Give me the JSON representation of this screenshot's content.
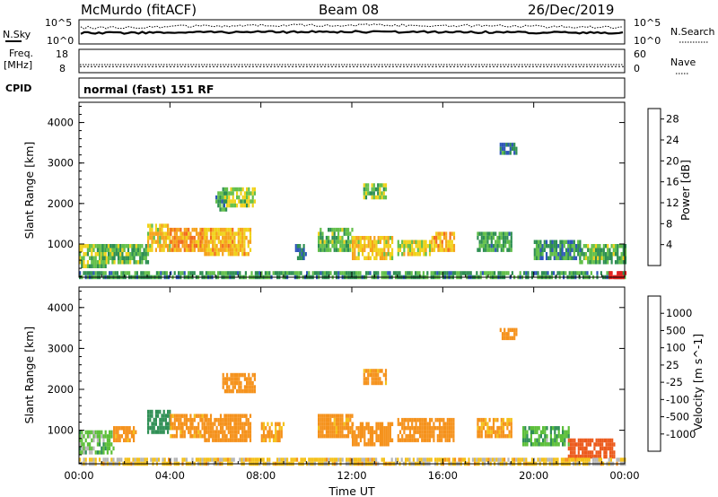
{
  "header": {
    "station": "McMurdo (fitACF)",
    "beam": "Beam 08",
    "date": "26/Dec/2019"
  },
  "noise_panel": {
    "left_label": "N.Sky",
    "right_label": "N.Search",
    "left_ticks": [
      "10^5",
      "10^0"
    ],
    "right_ticks": [
      "10^5",
      "10^0"
    ]
  },
  "freq_panel": {
    "left_label_line1": "Freq.",
    "left_label_line2": "[MHz]",
    "right_label": "Nave",
    "left_ticks": [
      "18",
      "8"
    ],
    "right_ticks": [
      "60",
      "0"
    ],
    "freq_mhz": 10.4,
    "nave": 20
  },
  "cpid_panel": {
    "label": "CPID",
    "mode": "normal (fast) 151 RF"
  },
  "chart_data": [
    {
      "type": "heatmap",
      "parameter": "Power",
      "ylabel": "Slant Range [km]",
      "xlabel": "Time UT",
      "ylim": [
        180,
        4500
      ],
      "xlim": [
        "00:00",
        "24:00"
      ],
      "y_ticks": [
        1000,
        2000,
        3000,
        4000
      ],
      "x_ticks": [
        "00:00",
        "04:00",
        "08:00",
        "12:00",
        "16:00",
        "20:00",
        "00:00"
      ],
      "colorbar": {
        "label": "Power [dB]",
        "range": [
          0,
          30
        ],
        "ticks": [
          4,
          8,
          12,
          16,
          20,
          24,
          28
        ],
        "colors": [
          "#0a1ef5",
          "#2d56b8",
          "#2e8f52",
          "#62bf4a",
          "#f0d21a",
          "#f6a21c",
          "#f26b1d",
          "#e81d1d"
        ]
      },
      "echo_regions": [
        {
          "t": [
            0.0,
            1.2
          ],
          "r": [
            500,
            1000
          ],
          "v": 14
        },
        {
          "t": [
            1.0,
            3.0
          ],
          "r": [
            600,
            1000
          ],
          "v": 12
        },
        {
          "t": [
            3.0,
            4.0
          ],
          "r": [
            900,
            1500
          ],
          "v": 18
        },
        {
          "t": [
            4.0,
            5.5
          ],
          "r": [
            900,
            1400
          ],
          "v": 22
        },
        {
          "t": [
            5.5,
            7.5
          ],
          "r": [
            800,
            1400
          ],
          "v": 19
        },
        {
          "t": [
            6.3,
            7.7
          ],
          "r": [
            2000,
            2400
          ],
          "v": 15
        },
        {
          "t": [
            6.0,
            6.5
          ],
          "r": [
            1900,
            2300
          ],
          "v": 10
        },
        {
          "t": [
            9.5,
            10.0
          ],
          "r": [
            700,
            1000
          ],
          "v": 8
        },
        {
          "t": [
            10.5,
            12.0
          ],
          "r": [
            900,
            1400
          ],
          "v": 12
        },
        {
          "t": [
            12.0,
            13.8
          ],
          "r": [
            700,
            1200
          ],
          "v": 18
        },
        {
          "t": [
            12.5,
            13.5
          ],
          "r": [
            2200,
            2500
          ],
          "v": 14
        },
        {
          "t": [
            14.0,
            15.5
          ],
          "r": [
            800,
            1100
          ],
          "v": 16
        },
        {
          "t": [
            15.5,
            16.5
          ],
          "r": [
            900,
            1300
          ],
          "v": 20
        },
        {
          "t": [
            17.5,
            19.0
          ],
          "r": [
            900,
            1300
          ],
          "v": 11
        },
        {
          "t": [
            18.5,
            19.2
          ],
          "r": [
            3300,
            3500
          ],
          "v": 8
        },
        {
          "t": [
            20.0,
            22.0
          ],
          "r": [
            700,
            1100
          ],
          "v": 10
        },
        {
          "t": [
            22.0,
            24.0
          ],
          "r": [
            600,
            1000
          ],
          "v": 12
        },
        {
          "t": [
            0.0,
            24.0
          ],
          "r": [
            180,
            330
          ],
          "v": 10
        },
        {
          "t": [
            23.3,
            24.0
          ],
          "r": [
            180,
            330
          ],
          "v": 28
        }
      ]
    },
    {
      "type": "heatmap",
      "parameter": "Velocity",
      "ylabel": "Slant Range [km]",
      "xlabel": "Time UT",
      "ylim": [
        180,
        4500
      ],
      "xlim": [
        "00:00",
        "24:00"
      ],
      "y_ticks": [
        1000,
        2000,
        3000,
        4000
      ],
      "x_ticks": [
        "00:00",
        "04:00",
        "08:00",
        "12:00",
        "16:00",
        "20:00",
        "00:00"
      ],
      "colorbar": {
        "label": "Velocity [m s^-1]",
        "tick_labels": [
          "1000",
          "500",
          "100",
          "25",
          "-25",
          "-100",
          "-500",
          "-1000"
        ],
        "colors": [
          "#1f3fbf",
          "#2d78b5",
          "#2f8f55",
          "#5dbf3a",
          "#b7b7b7",
          "#f4c11a",
          "#f5921c",
          "#ec5a1c",
          "#e31a1a"
        ]
      },
      "echo_regions": [
        {
          "t": [
            0.0,
            1.5
          ],
          "r": [
            500,
            1000
          ],
          "v": 60
        },
        {
          "t": [
            1.5,
            2.5
          ],
          "r": [
            800,
            1100
          ],
          "v": -150
        },
        {
          "t": [
            3.0,
            4.0
          ],
          "r": [
            1000,
            1500
          ],
          "v": 300
        },
        {
          "t": [
            4.0,
            5.5
          ],
          "r": [
            900,
            1400
          ],
          "v": -150
        },
        {
          "t": [
            5.5,
            7.5
          ],
          "r": [
            800,
            1400
          ],
          "v": -200
        },
        {
          "t": [
            6.3,
            7.7
          ],
          "r": [
            2000,
            2400
          ],
          "v": -300
        },
        {
          "t": [
            8.0,
            9.0
          ],
          "r": [
            800,
            1200
          ],
          "v": -120
        },
        {
          "t": [
            10.5,
            12.0
          ],
          "r": [
            900,
            1400
          ],
          "v": -150
        },
        {
          "t": [
            12.0,
            13.8
          ],
          "r": [
            700,
            1200
          ],
          "v": -200
        },
        {
          "t": [
            12.5,
            13.5
          ],
          "r": [
            2200,
            2500
          ],
          "v": -150
        },
        {
          "t": [
            14.0,
            16.5
          ],
          "r": [
            800,
            1300
          ],
          "v": -200
        },
        {
          "t": [
            17.5,
            19.0
          ],
          "r": [
            900,
            1300
          ],
          "v": -120
        },
        {
          "t": [
            18.5,
            19.2
          ],
          "r": [
            3300,
            3500
          ],
          "v": -300
        },
        {
          "t": [
            19.5,
            21.5
          ],
          "r": [
            700,
            1100
          ],
          "v": 80
        },
        {
          "t": [
            21.5,
            23.5
          ],
          "r": [
            400,
            800
          ],
          "v": -700
        },
        {
          "t": [
            0.0,
            24.0
          ],
          "r": [
            180,
            330
          ],
          "v": -50
        }
      ]
    }
  ]
}
